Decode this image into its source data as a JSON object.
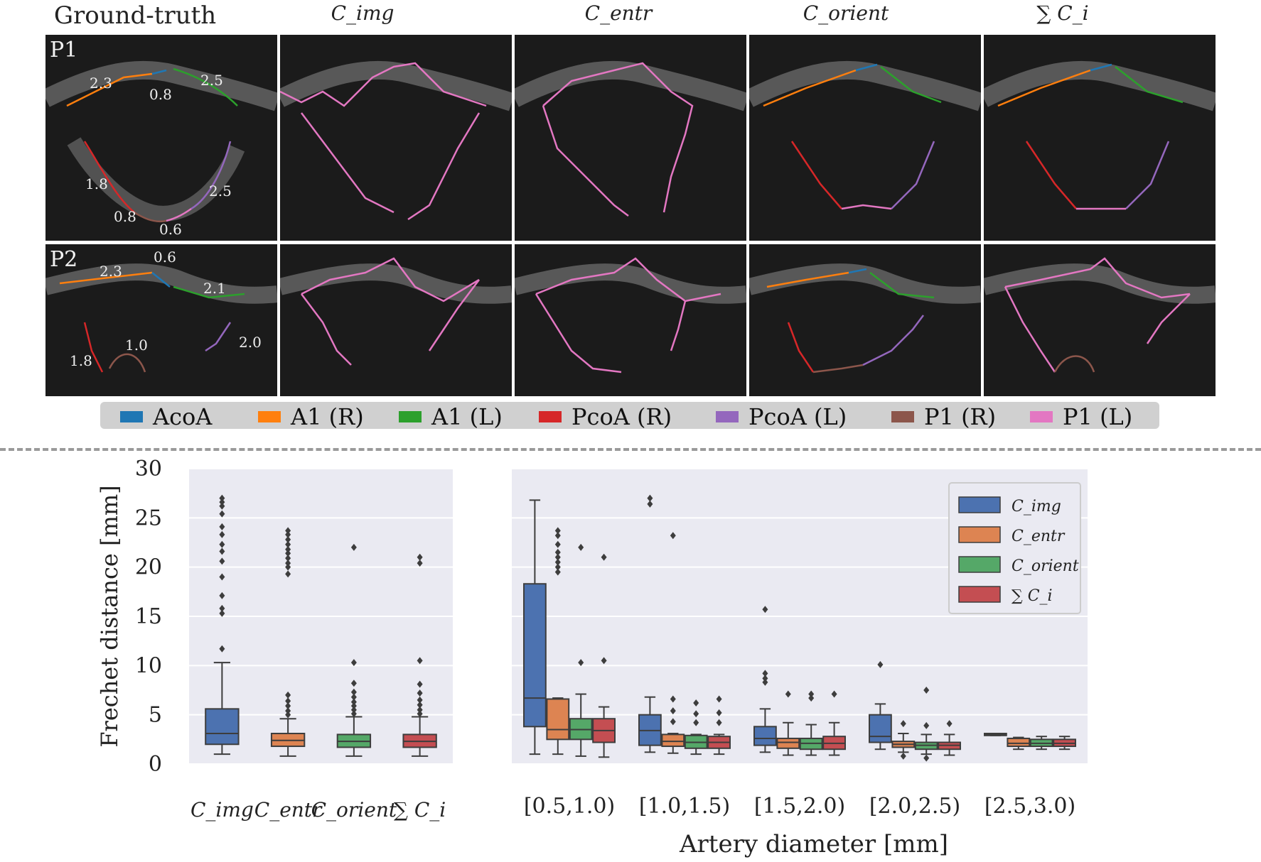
{
  "figure": {
    "column_titles": [
      "Ground-truth",
      "C_img",
      "C_entr",
      "C_orient",
      "∑ C_i"
    ],
    "row_labels": [
      "P1",
      "P2"
    ],
    "ground_truth_labels": {
      "p1": [
        "2.3",
        "0.8",
        "2.5",
        "1.8",
        "2.5",
        "0.8",
        "0.6"
      ],
      "p2": [
        "2.3",
        "0.6",
        "2.1",
        "1.8",
        "1.0",
        "2.0"
      ]
    },
    "legend": [
      {
        "label": "AcoA",
        "color": "#1f77b4"
      },
      {
        "label": "A1 (R)",
        "color": "#ff7f0e"
      },
      {
        "label": "A1 (L)",
        "color": "#2ca02c"
      },
      {
        "label": "PcoA (R)",
        "color": "#d62728"
      },
      {
        "label": "PcoA (L)",
        "color": "#9467bd"
      },
      {
        "label": "P1 (R)",
        "color": "#8c564b"
      },
      {
        "label": "P1 (L)",
        "color": "#e377c2"
      }
    ]
  },
  "chart_data": [
    {
      "type": "box",
      "title": "",
      "ylabel": "Frechet distance [mm]",
      "xlabel": "",
      "ylim": [
        0,
        30
      ],
      "yticks": [
        0,
        5,
        10,
        15,
        20,
        25,
        30
      ],
      "categories": [
        "C_img",
        "C_entr",
        "C_orient",
        "∑ C_i"
      ],
      "colors": [
        "#4c72b0",
        "#dd8452",
        "#55a868",
        "#c44e52"
      ],
      "boxes": [
        {
          "name": "C_img",
          "whisker_low": 1.0,
          "q1": 2.0,
          "median": 3.1,
          "q3": 5.6,
          "whisker_high": 10.3,
          "outliers": [
            11.7,
            15.3,
            15.8,
            17.1,
            19.0,
            20.6,
            21.6,
            22.3,
            23.3,
            24.1,
            25.4,
            26.2,
            26.6,
            27.0
          ]
        },
        {
          "name": "C_entr",
          "whisker_low": 0.8,
          "q1": 1.8,
          "median": 2.4,
          "q3": 3.1,
          "whisker_high": 4.6,
          "outliers": [
            5.0,
            5.4,
            5.9,
            6.4,
            7.0,
            19.3,
            20.0,
            20.4,
            20.9,
            21.4,
            21.8,
            22.3,
            22.8,
            23.3,
            23.7
          ]
        },
        {
          "name": "C_orient",
          "whisker_low": 0.8,
          "q1": 1.7,
          "median": 2.3,
          "q3": 3.0,
          "whisker_high": 4.8,
          "outliers": [
            5.1,
            5.5,
            5.9,
            6.3,
            6.8,
            7.3,
            8.2,
            10.3,
            22.0
          ]
        },
        {
          "name": "∑ C_i",
          "whisker_low": 0.8,
          "q1": 1.7,
          "median": 2.3,
          "q3": 3.0,
          "whisker_high": 4.8,
          "outliers": [
            5.1,
            5.5,
            6.0,
            6.5,
            7.2,
            8.1,
            10.5,
            20.4,
            21.0
          ]
        }
      ]
    },
    {
      "type": "box",
      "title": "",
      "xlabel": "Artery diameter [mm]",
      "ylabel": "",
      "ylim": [
        0,
        30
      ],
      "categories": [
        "[0.5,1.0)",
        "[1.0,1.5)",
        "[1.5,2.0)",
        "[2.0,2.5)",
        "[2.5,3.0)"
      ],
      "legend": {
        "placement": "top-right",
        "entries": [
          "C_img",
          "C_entr",
          "C_orient",
          "∑ C_i"
        ]
      },
      "series": [
        {
          "name": "C_img",
          "color": "#4c72b0",
          "boxes": [
            {
              "whisker_low": 1.0,
              "q1": 3.8,
              "median": 6.7,
              "q3": 18.3,
              "whisker_high": 26.8,
              "outliers": []
            },
            {
              "whisker_low": 1.2,
              "q1": 1.9,
              "median": 3.4,
              "q3": 5.0,
              "whisker_high": 6.8,
              "outliers": [
                26.4,
                27.0
              ]
            },
            {
              "whisker_low": 1.2,
              "q1": 1.9,
              "median": 2.6,
              "q3": 3.8,
              "whisker_high": 5.6,
              "outliers": [
                8.3,
                8.7,
                9.2,
                15.7
              ]
            },
            {
              "whisker_low": 1.5,
              "q1": 2.2,
              "median": 2.8,
              "q3": 5.0,
              "whisker_high": 6.1,
              "outliers": [
                10.1
              ]
            },
            {
              "whisker_low": 2.9,
              "q1": 2.9,
              "median": 3.0,
              "q3": 3.1,
              "whisker_high": 3.1,
              "outliers": []
            }
          ]
        },
        {
          "name": "C_entr",
          "color": "#dd8452",
          "boxes": [
            {
              "whisker_low": 1.0,
              "q1": 2.5,
              "median": 3.5,
              "q3": 6.6,
              "whisker_high": 6.7,
              "outliers": [
                19.5,
                20.0,
                20.5,
                21.0,
                21.5,
                22.3,
                23.2,
                23.7
              ]
            },
            {
              "whisker_low": 1.1,
              "q1": 1.8,
              "median": 2.3,
              "q3": 3.0,
              "whisker_high": 3.1,
              "outliers": [
                4.3,
                5.4,
                6.6,
                23.2
              ]
            },
            {
              "whisker_low": 0.9,
              "q1": 1.6,
              "median": 2.2,
              "q3": 2.6,
              "whisker_high": 4.2,
              "outliers": [
                7.1
              ]
            },
            {
              "whisker_low": 1.2,
              "q1": 1.7,
              "median": 2.0,
              "q3": 2.3,
              "whisker_high": 3.1,
              "outliers": [
                0.8,
                4.1
              ]
            },
            {
              "whisker_low": 1.5,
              "q1": 1.8,
              "median": 2.1,
              "q3": 2.6,
              "whisker_high": 2.7,
              "outliers": []
            }
          ]
        },
        {
          "name": "C_orient",
          "color": "#55a868",
          "boxes": [
            {
              "whisker_low": 0.8,
              "q1": 2.5,
              "median": 3.5,
              "q3": 4.6,
              "whisker_high": 7.1,
              "outliers": [
                10.3,
                22.0
              ]
            },
            {
              "whisker_low": 1.0,
              "q1": 1.6,
              "median": 2.2,
              "q3": 2.9,
              "whisker_high": 3.0,
              "outliers": [
                4.2,
                5.1,
                6.2
              ]
            },
            {
              "whisker_low": 0.9,
              "q1": 1.5,
              "median": 2.1,
              "q3": 2.6,
              "whisker_high": 4.0,
              "outliers": [
                6.7,
                7.1
              ]
            },
            {
              "whisker_low": 1.0,
              "q1": 1.5,
              "median": 1.9,
              "q3": 2.2,
              "whisker_high": 3.0,
              "outliers": [
                0.6,
                3.9,
                7.5
              ]
            },
            {
              "whisker_low": 1.5,
              "q1": 1.8,
              "median": 2.1,
              "q3": 2.5,
              "whisker_high": 2.8,
              "outliers": []
            }
          ]
        },
        {
          "name": "∑ C_i",
          "color": "#c44e52",
          "boxes": [
            {
              "whisker_low": 0.7,
              "q1": 2.2,
              "median": 3.4,
              "q3": 4.6,
              "whisker_high": 5.8,
              "outliers": [
                10.5,
                21.0
              ]
            },
            {
              "whisker_low": 1.0,
              "q1": 1.6,
              "median": 2.2,
              "q3": 2.8,
              "whisker_high": 3.0,
              "outliers": [
                4.2,
                5.2,
                6.6
              ]
            },
            {
              "whisker_low": 0.9,
              "q1": 1.5,
              "median": 2.1,
              "q3": 2.8,
              "whisker_high": 4.2,
              "outliers": [
                7.1
              ]
            },
            {
              "whisker_low": 0.9,
              "q1": 1.5,
              "median": 1.9,
              "q3": 2.2,
              "whisker_high": 3.0,
              "outliers": [
                4.1
              ]
            },
            {
              "whisker_low": 1.5,
              "q1": 1.8,
              "median": 2.1,
              "q3": 2.5,
              "whisker_high": 2.8,
              "outliers": []
            }
          ]
        }
      ]
    }
  ]
}
